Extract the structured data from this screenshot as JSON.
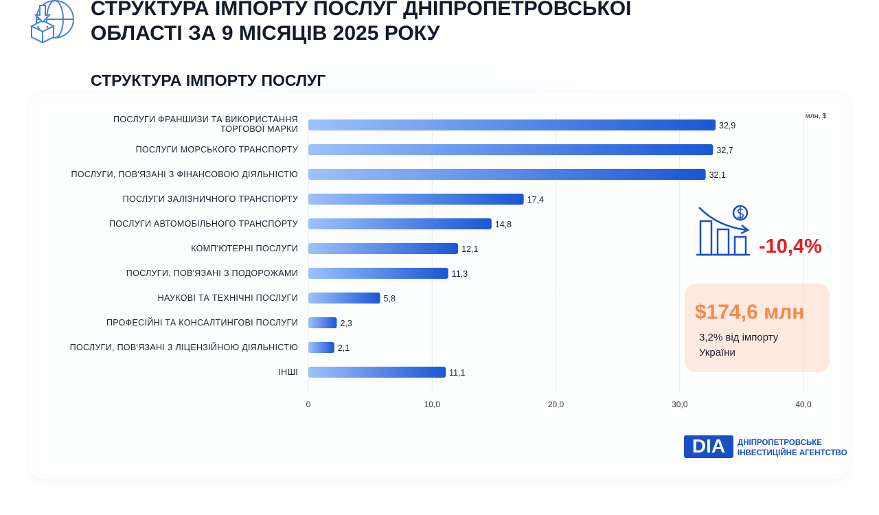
{
  "header": {
    "title": "СТРУКТУРА ІМПОРТУ ПОСЛУГ ДНІПРОПЕТРОВСЬКОЇ\nОБЛАСТІ ЗА 9 МІСЯЦІВ 2025 РОКУ"
  },
  "chart_data": {
    "type": "bar",
    "orientation": "horizontal",
    "title": "СТРУКТУРА ІМПОРТУ ПОСЛУГ",
    "unit": "млн, $",
    "categories": [
      "ПОСЛУГИ ФРАНШИЗИ ТА ВИКОРИСТАННЯ\nТОРГОВОЇ МАРКИ",
      "ПОСЛУГИ МОРСЬКОГО ТРАНСПОРТУ",
      "ПОСЛУГИ, ПОВ'ЯЗАНІ З ФІНАНСОВОЮ ДІЯЛЬНІСТЮ",
      "ПОСЛУГИ ЗАЛІЗНИЧНОГО ТРАНСПОРТУ",
      "ПОСЛУГИ АВТОМОБІЛЬНОГО ТРАНСПОРТУ",
      "КОМП'ЮТЕРНІ ПОСЛУГИ",
      "ПОСЛУГИ, ПОВ'ЯЗАНІ З ПОДОРОЖАМИ",
      "НАУКОВІ ТА ТЕХНІЧНІ ПОСЛУГИ",
      "ПРОФЕСІЙНІ ТА КОНСАЛТИНГОВІ ПОСЛУГИ",
      "ПОСЛУГИ, ПОВ'ЯЗАНІ З ЛІЦЕНЗІЙНОЮ ДІЯЛЬНІСТЮ",
      "ІНШІ"
    ],
    "values": [
      32.9,
      32.7,
      32.1,
      17.4,
      14.8,
      12.1,
      11.3,
      5.8,
      2.3,
      2.1,
      11.1
    ],
    "value_labels": [
      "32,9",
      "32,7",
      "32,1",
      "17,4",
      "14,8",
      "12,1",
      "11,3",
      "5,8",
      "2,3",
      "2,1",
      "11,1"
    ],
    "color": "#1a56d6",
    "xlim": [
      0,
      40
    ],
    "xticks": [
      0,
      {
        "value": 10,
        "label": "10,0"
      },
      {
        "value": 20,
        "label": "20,0"
      },
      {
        "value": 30,
        "label": "30,0"
      },
      {
        "value": 40,
        "label": "40,0"
      }
    ],
    "grid": true
  },
  "stats": {
    "change": "-10,4%",
    "total": "$174,6 млн",
    "share": "3,2% від імпорту\nУкраїни"
  },
  "logo": {
    "mark": "DIA",
    "name": "ДНІПРОПЕТРОВСЬКЕ\nІНВЕСТИЦІЙНЕ АГЕНТСТВО"
  }
}
